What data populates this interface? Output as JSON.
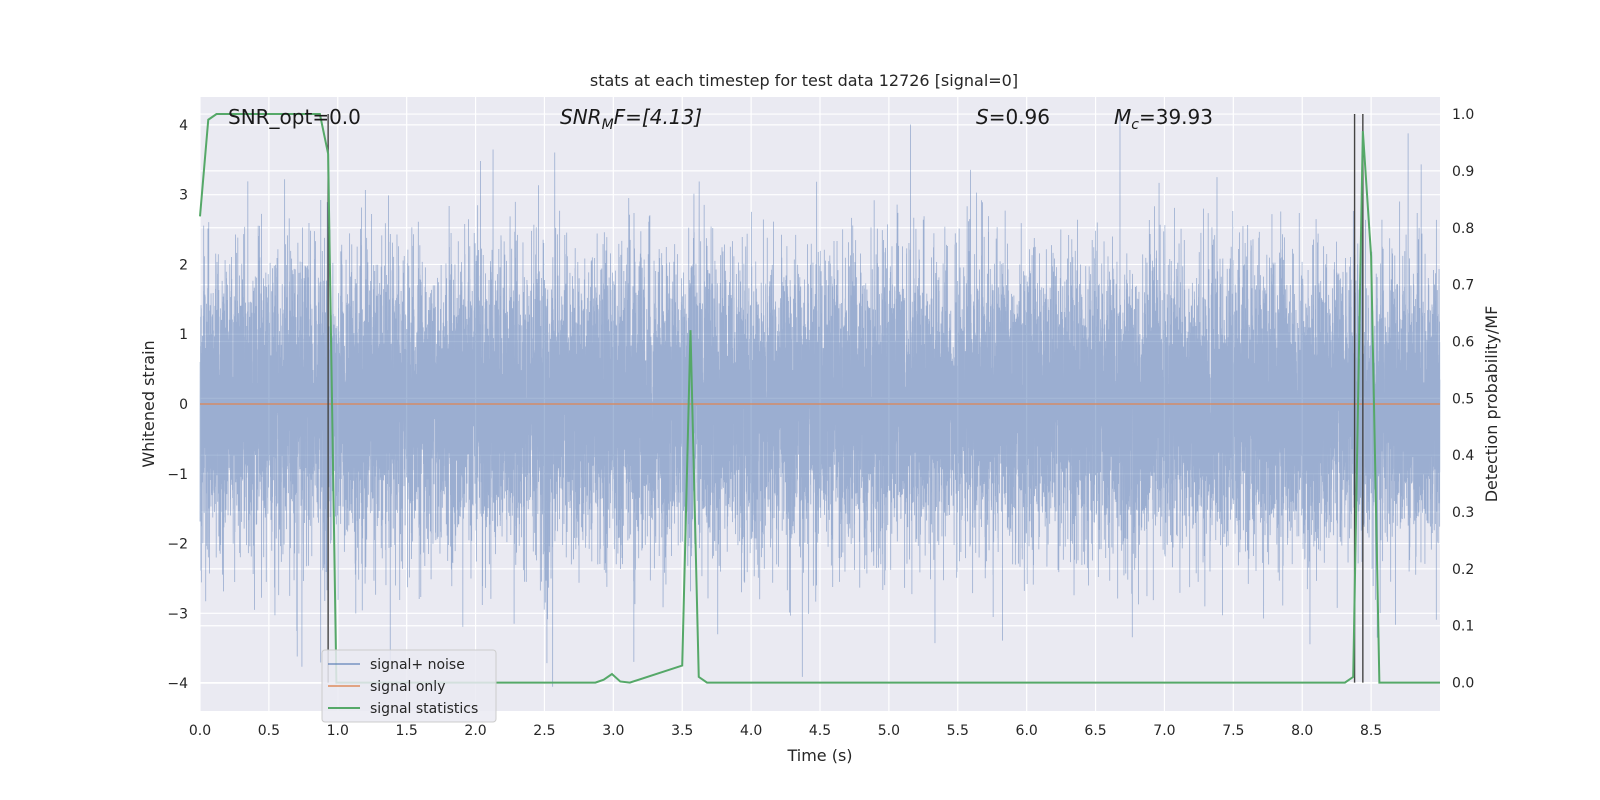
{
  "chart_data": {
    "type": "line",
    "title": "stats at each timestep for test data 12726 [signal=0]",
    "xlabel": "Time (s)",
    "ylabel_left": "Whitened strain",
    "ylabel_right": "Detection probability/MF",
    "xlim": [
      0.0,
      9.0
    ],
    "ylim_left": [
      -4.4,
      4.4
    ],
    "ylim_right": [
      -0.05,
      1.03
    ],
    "x_ticks": [
      "0.0",
      "0.5",
      "1.0",
      "1.5",
      "2.0",
      "2.5",
      "3.0",
      "3.5",
      "4.0",
      "4.5",
      "5.0",
      "5.5",
      "6.0",
      "6.5",
      "7.0",
      "7.5",
      "8.0",
      "8.5"
    ],
    "y_ticks_left": [
      "4",
      "3",
      "2",
      "1",
      "0",
      "−1",
      "−2",
      "−3",
      "−4"
    ],
    "y_ticks_right": [
      "1.0",
      "0.9",
      "0.8",
      "0.7",
      "0.6",
      "0.5",
      "0.4",
      "0.3",
      "0.2",
      "0.1",
      "0.0"
    ],
    "grid": true,
    "legend_position": "lower-left",
    "annotations": {
      "snr_opt": "SNR_opt=0.0",
      "snr_mf_base": "SNR",
      "snr_mf_sub": "M",
      "snr_mf_rest": "F=[4.13]",
      "s_label": "S",
      "s_value": "=0.96",
      "mc_base": "M",
      "mc_sub": "c",
      "mc_value": "=39.93"
    },
    "vertical_markers_s": [
      0.93,
      8.38,
      8.44
    ],
    "series": [
      {
        "name": "signal+ noise",
        "color": "#4c72b0",
        "axis": "left",
        "description_type": "dense-noise",
        "sample_rate_hz": 2048,
        "std": 1.0,
        "seed": 12726
      },
      {
        "name": "signal only",
        "color": "#dd8452",
        "axis": "left",
        "x": [
          0.0,
          9.0
        ],
        "y": [
          0.0,
          0.0
        ]
      },
      {
        "name": "signal statistics",
        "color": "#55a868",
        "axis": "right",
        "x": [
          0.0,
          0.06,
          0.12,
          0.25,
          0.5,
          0.75,
          0.87,
          0.93,
          0.99,
          1.05,
          1.5,
          2.0,
          2.5,
          2.87,
          2.93,
          2.99,
          3.05,
          3.12,
          3.5,
          3.56,
          3.62,
          3.68,
          3.75,
          4.0,
          5.0,
          6.0,
          7.0,
          8.0,
          8.31,
          8.37,
          8.44,
          8.5,
          8.56,
          8.62,
          9.0
        ],
        "y": [
          0.82,
          0.99,
          1.0,
          1.0,
          1.0,
          1.0,
          1.0,
          0.93,
          0.0,
          0.0,
          0.0,
          0.0,
          0.0,
          0.0,
          0.005,
          0.015,
          0.002,
          0.0,
          0.03,
          0.62,
          0.01,
          0.0,
          0.0,
          0.0,
          0.0,
          0.0,
          0.0,
          0.0,
          0.0,
          0.01,
          0.97,
          0.75,
          0.0,
          0.0,
          0.0
        ]
      }
    ]
  }
}
